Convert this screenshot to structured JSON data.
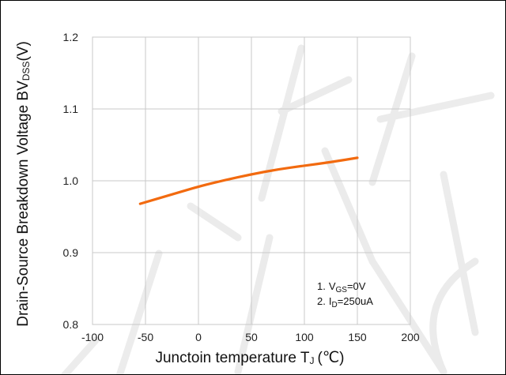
{
  "chart_data": {
    "type": "line",
    "title": "",
    "xlabel": {
      "main": "Junctoin temperature T",
      "sub": "J",
      "unit": "(℃)"
    },
    "ylabel": {
      "main": "Drain-Source Breakdown Voltage BV",
      "sub": "DSS",
      "unit": "(V)"
    },
    "xlim": [
      -100,
      200
    ],
    "ylim": [
      0.8,
      1.2
    ],
    "x_ticks": [
      -100,
      -50,
      0,
      50,
      100,
      150,
      200
    ],
    "y_ticks": [
      0.8,
      0.9,
      1.0,
      1.1,
      1.2
    ],
    "y_tick_labels": [
      "0.8",
      "0.9",
      "1.0",
      "1.1",
      "1.2"
    ],
    "grid": true,
    "series": [
      {
        "color": "#f26a0f",
        "x": [
          -55,
          -25,
          0,
          25,
          50,
          75,
          100,
          125,
          150
        ],
        "y": [
          0.968,
          0.981,
          0.992,
          1.001,
          1.009,
          1.016,
          1.021,
          1.026,
          1.032
        ]
      }
    ],
    "annotations": [
      {
        "num": "1.",
        "symbol": "V",
        "sub": "GS",
        "value": "=0V"
      },
      {
        "num": "2.",
        "symbol": "I",
        "sub": "D",
        "value": "=250uA"
      }
    ],
    "watermark": "源特"
  },
  "colors": {
    "grid": "#c8c8c8",
    "frame": "#000000"
  }
}
